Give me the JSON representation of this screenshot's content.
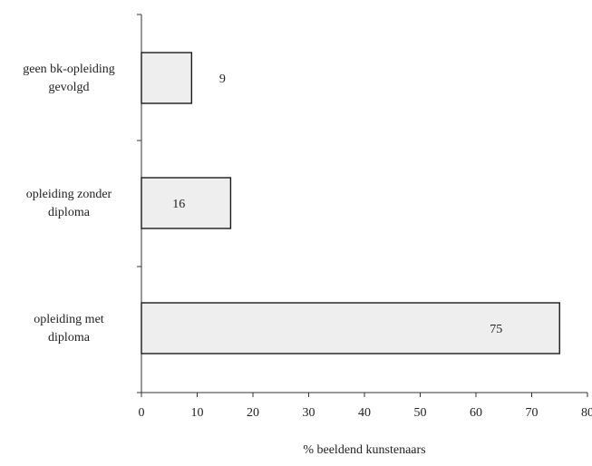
{
  "chart_data": {
    "type": "bar",
    "orientation": "horizontal",
    "categories": [
      [
        "geen bk-opleiding",
        "gevolgd"
      ],
      [
        "opleiding zonder",
        "diploma"
      ],
      [
        "opleiding met",
        "diploma"
      ]
    ],
    "values": [
      9,
      16,
      75
    ],
    "data_labels": [
      "9",
      "16",
      "75"
    ],
    "xlabel": "% beeldend kunstenaars",
    "ylabel": "",
    "title": "",
    "xlim": [
      0,
      80
    ],
    "xticks": [
      "0",
      "10",
      "20",
      "30",
      "40",
      "50",
      "60",
      "70",
      "80"
    ],
    "grid": false,
    "legend": "none",
    "bar_fill": "#eeeeee",
    "bar_stroke": "#1a1a1a",
    "axis_color": "#333333"
  }
}
